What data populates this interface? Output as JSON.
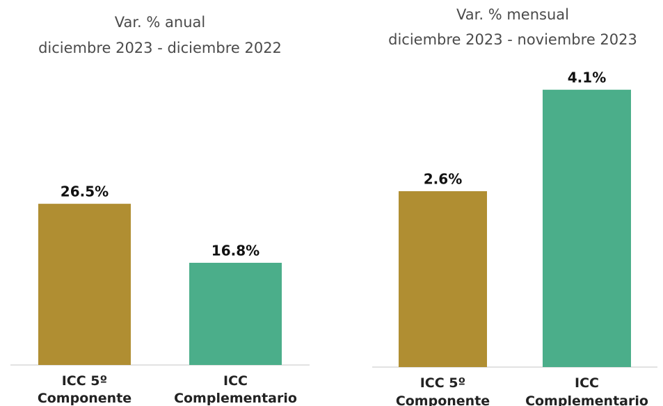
{
  "chart_data": [
    {
      "type": "bar",
      "title": "Var. % anual",
      "subtitle": "diciembre 2023 - diciembre 2022",
      "categories": [
        "ICC 5º\nComponente",
        "ICC\nComplementario"
      ],
      "values": [
        26.5,
        16.8
      ],
      "value_labels": [
        "26.5%",
        "16.8%"
      ],
      "colors": [
        "#b08e32",
        "#4bae8a"
      ]
    },
    {
      "type": "bar",
      "title": "Var. % mensual",
      "subtitle": "diciembre 2023 - noviembre 2023",
      "categories": [
        "ICC 5º\nComponente",
        "ICC\nComplementario"
      ],
      "values": [
        2.6,
        4.1
      ],
      "value_labels": [
        "2.6%",
        "4.1%"
      ],
      "colors": [
        "#b08e32",
        "#4bae8a"
      ]
    }
  ]
}
